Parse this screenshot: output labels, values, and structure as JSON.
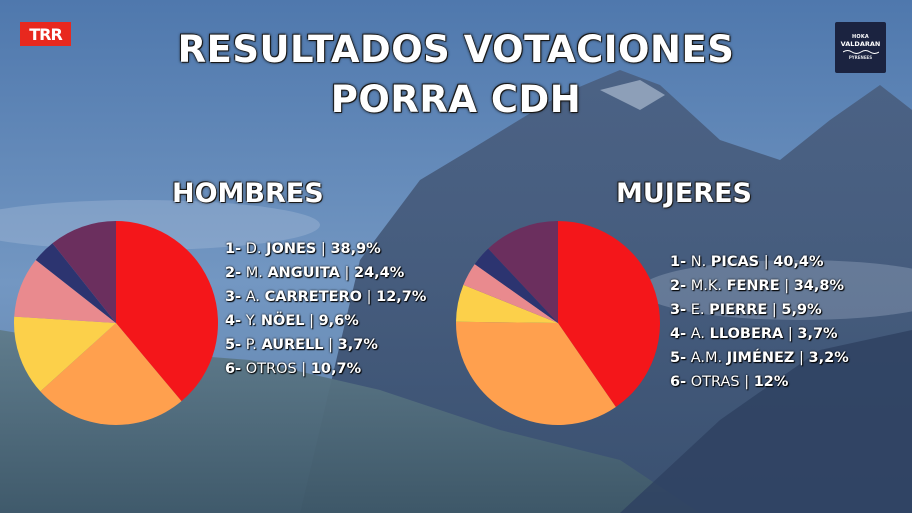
{
  "header": {
    "logo_left": "TRR",
    "logo_right": {
      "line1": "HOKA",
      "line2": "VALDARAN",
      "line3": "PYRENEES"
    },
    "title_line1": "RESULTADOS VOTACIONES",
    "title_line2": "PORRA CDH"
  },
  "colors": {
    "red": "#f4161a",
    "orange": "#ffa04e",
    "yellow": "#fcd04a",
    "pink": "#e98a8e",
    "navy": "#2c3470",
    "plum": "#6b2f5e"
  },
  "chart_data": [
    {
      "type": "pie",
      "title": "HOMBRES",
      "series": [
        {
          "rank": "1-",
          "initial": "D.",
          "name": "JONES",
          "label": "38,9%",
          "value": 38.9,
          "color": "#f4161a"
        },
        {
          "rank": "2-",
          "initial": "M.",
          "name": "ANGUITA",
          "label": "24,4%",
          "value": 24.4,
          "color": "#ffa04e"
        },
        {
          "rank": "3-",
          "initial": "A.",
          "name": "CARRETERO",
          "label": "12,7%",
          "value": 12.7,
          "color": "#fcd04a"
        },
        {
          "rank": "4-",
          "initial": "Y.",
          "name": "NÖEL",
          "label": "9,6%",
          "value": 9.6,
          "color": "#e98a8e"
        },
        {
          "rank": "5-",
          "initial": "P.",
          "name": "AURELL",
          "label": "3,7%",
          "value": 3.7,
          "color": "#2c3470"
        },
        {
          "rank": "6-",
          "initial": "OTROS",
          "name": "",
          "label": "10,7%",
          "value": 10.7,
          "color": "#6b2f5e"
        }
      ]
    },
    {
      "type": "pie",
      "title": "MUJERES",
      "series": [
        {
          "rank": "1-",
          "initial": "N.",
          "name": "PICAS",
          "label": "40,4%",
          "value": 40.4,
          "color": "#f4161a"
        },
        {
          "rank": "2-",
          "initial": "M.K.",
          "name": "FENRE",
          "label": "34,8%",
          "value": 34.8,
          "color": "#ffa04e"
        },
        {
          "rank": "3-",
          "initial": "E.",
          "name": "PIERRE",
          "label": "5,9%",
          "value": 5.9,
          "color": "#fcd04a"
        },
        {
          "rank": "4-",
          "initial": "A.",
          "name": "LLOBERA",
          "label": "3,7%",
          "value": 3.7,
          "color": "#e98a8e"
        },
        {
          "rank": "5-",
          "initial": "A.M.",
          "name": "JIMÉNEZ",
          "label": "3,2%",
          "value": 3.2,
          "color": "#2c3470"
        },
        {
          "rank": "6-",
          "initial": "OTRAS",
          "name": "",
          "label": "12%",
          "value": 12,
          "color": "#6b2f5e"
        }
      ]
    }
  ]
}
